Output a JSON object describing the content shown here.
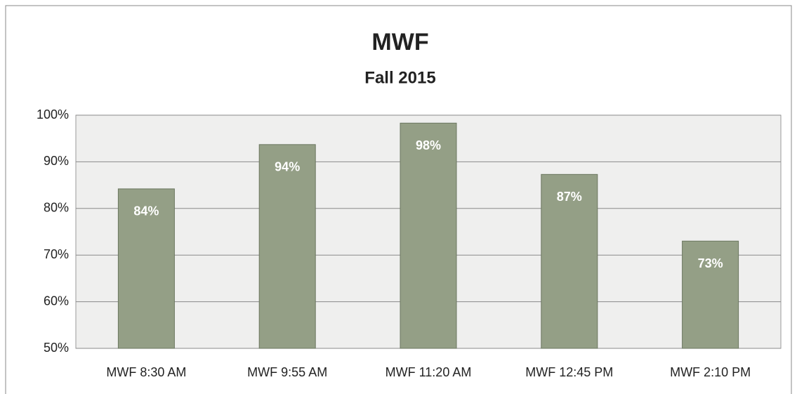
{
  "chart_data": {
    "type": "bar",
    "title": "MWF",
    "subtitle": "Fall 2015",
    "categories": [
      "MWF 8:30 AM",
      "MWF 9:55 AM",
      "MWF 11:20 AM",
      "MWF 12:45 PM",
      "MWF 2:10 PM"
    ],
    "values": [
      84.2,
      93.7,
      98.3,
      87.3,
      73
    ],
    "value_labels": [
      "84%",
      "94%",
      "98%",
      "87%",
      "73%"
    ],
    "color": "#949f86",
    "ylim": [
      50,
      100
    ],
    "yticks": [
      {
        "value": 50,
        "label": "50%"
      },
      {
        "value": 60,
        "label": "60%"
      },
      {
        "value": 70,
        "label": "70%"
      },
      {
        "value": 80,
        "label": "80%"
      },
      {
        "value": 90,
        "label": "90%"
      },
      {
        "value": 100,
        "label": "100%"
      }
    ],
    "grid": true
  }
}
